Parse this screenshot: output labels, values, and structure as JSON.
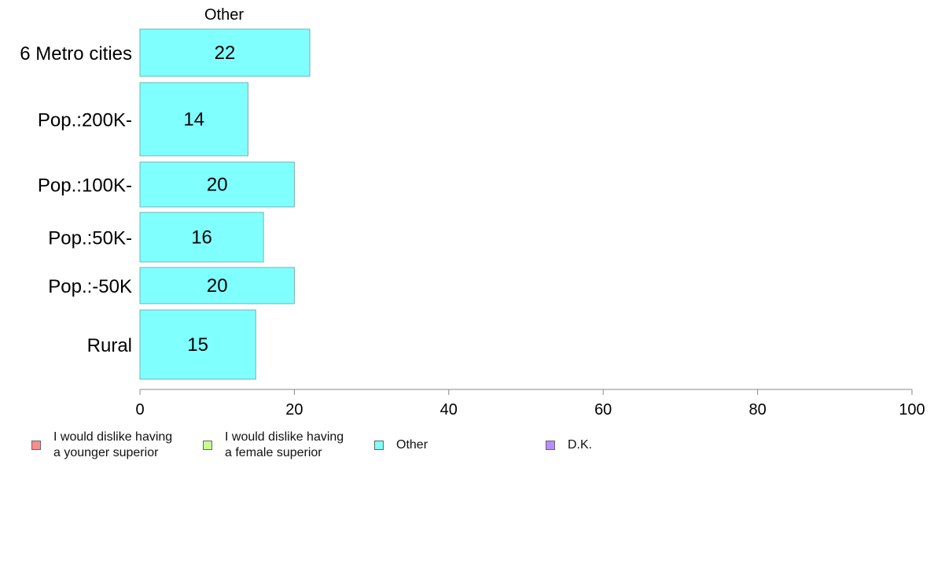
{
  "chart_data": {
    "type": "bar",
    "orientation": "horizontal",
    "title": "Other",
    "categories": [
      "6 Metro cities",
      "Pop.:200K-",
      "Pop.:100K-",
      "Pop.:50K-",
      "Pop.:-50K",
      "Rural"
    ],
    "values": [
      22,
      14,
      20,
      16,
      20,
      15
    ],
    "value_labels": [
      "22",
      "14",
      "20",
      "16",
      "20",
      "15"
    ],
    "xlim": [
      0,
      100
    ],
    "xticks": [
      0,
      20,
      40,
      60,
      80,
      100
    ],
    "tick_labels": [
      "0",
      "20",
      "40",
      "60",
      "80",
      "100"
    ],
    "bar_color": "#80ffff",
    "bar_edge_color": "#6fb4b4",
    "grid": false,
    "legend_position": "bottom",
    "legend": [
      {
        "label": "I would dislike having\na younger superior",
        "color": "#ff8c8c"
      },
      {
        "label": "I would dislike having\na female superior",
        "color": "#c6ff8c"
      },
      {
        "label": "Other",
        "color": "#80ffff"
      },
      {
        "label": "D.K.",
        "color": "#b98cff"
      }
    ]
  }
}
